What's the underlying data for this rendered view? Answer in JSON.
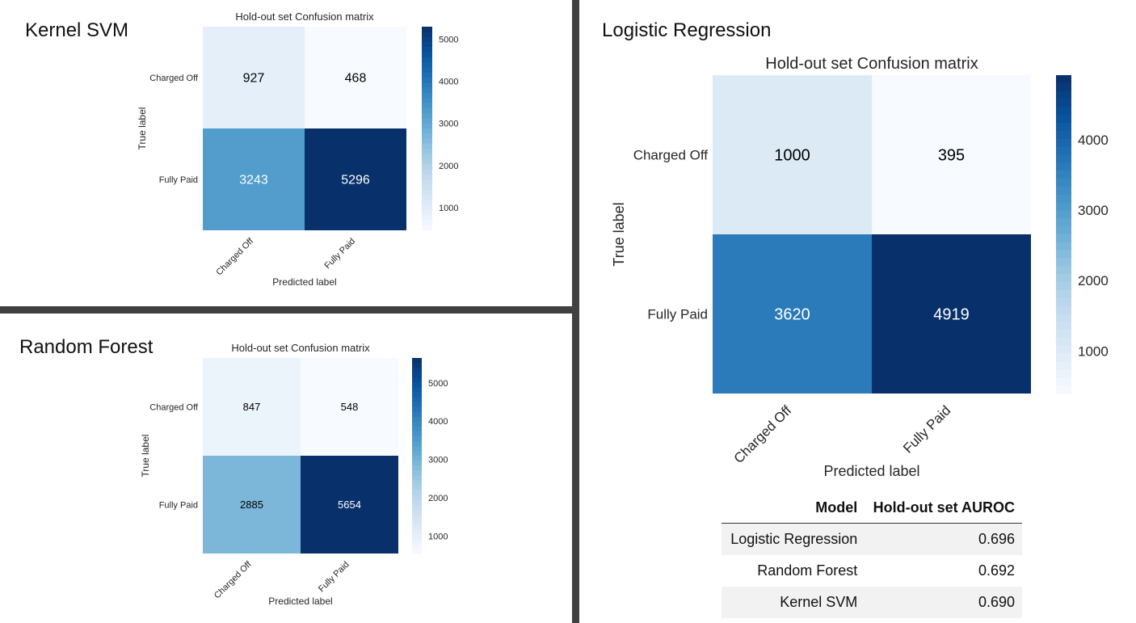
{
  "panels": {
    "svm": {
      "title": "Kernel SVM"
    },
    "lr": {
      "title": "Logistic Regression"
    },
    "rf": {
      "title": "Random Forest"
    }
  },
  "table": {
    "headers": [
      "Model",
      "Hold-out set AUROC"
    ],
    "rows": [
      {
        "model": "Logistic Regression",
        "auroc": "0.696"
      },
      {
        "model": "Random Forest",
        "auroc": "0.692"
      },
      {
        "model": "Kernel SVM",
        "auroc": "0.690"
      }
    ]
  },
  "colors": {
    "divider": "#404040",
    "colormap": "Blues",
    "cell_text_dark": "#000000",
    "cell_text_light": "#ffffff"
  },
  "chart_data": [
    {
      "id": "svm",
      "type": "heatmap",
      "title": "Hold-out set Confusion matrix",
      "xlabel": "Predicted label",
      "ylabel": "True label",
      "rows": [
        "Charged Off",
        "Fully Paid"
      ],
      "cols": [
        "Charged Off",
        "Fully Paid"
      ],
      "values": [
        [
          927,
          468
        ],
        [
          3243,
          5296
        ]
      ],
      "colorbar": {
        "min": 468,
        "max": 5296,
        "ticks": [
          1000,
          2000,
          3000,
          4000,
          5000
        ]
      }
    },
    {
      "id": "rf",
      "type": "heatmap",
      "title": "Hold-out set Confusion matrix",
      "xlabel": "Predicted label",
      "ylabel": "True label",
      "rows": [
        "Charged Off",
        "Fully Paid"
      ],
      "cols": [
        "Charged Off",
        "Fully Paid"
      ],
      "values": [
        [
          847,
          548
        ],
        [
          2885,
          5654
        ]
      ],
      "colorbar": {
        "min": 548,
        "max": 5654,
        "ticks": [
          1000,
          2000,
          3000,
          4000,
          5000
        ]
      }
    },
    {
      "id": "lr",
      "type": "heatmap",
      "title": "Hold-out set Confusion matrix",
      "xlabel": "Predicted label",
      "ylabel": "True label",
      "rows": [
        "Charged Off",
        "Fully Paid"
      ],
      "cols": [
        "Charged Off",
        "Fully Paid"
      ],
      "values": [
        [
          1000,
          395
        ],
        [
          3620,
          4919
        ]
      ],
      "colorbar": {
        "min": 395,
        "max": 4919,
        "ticks": [
          1000,
          2000,
          3000,
          4000
        ]
      }
    }
  ]
}
